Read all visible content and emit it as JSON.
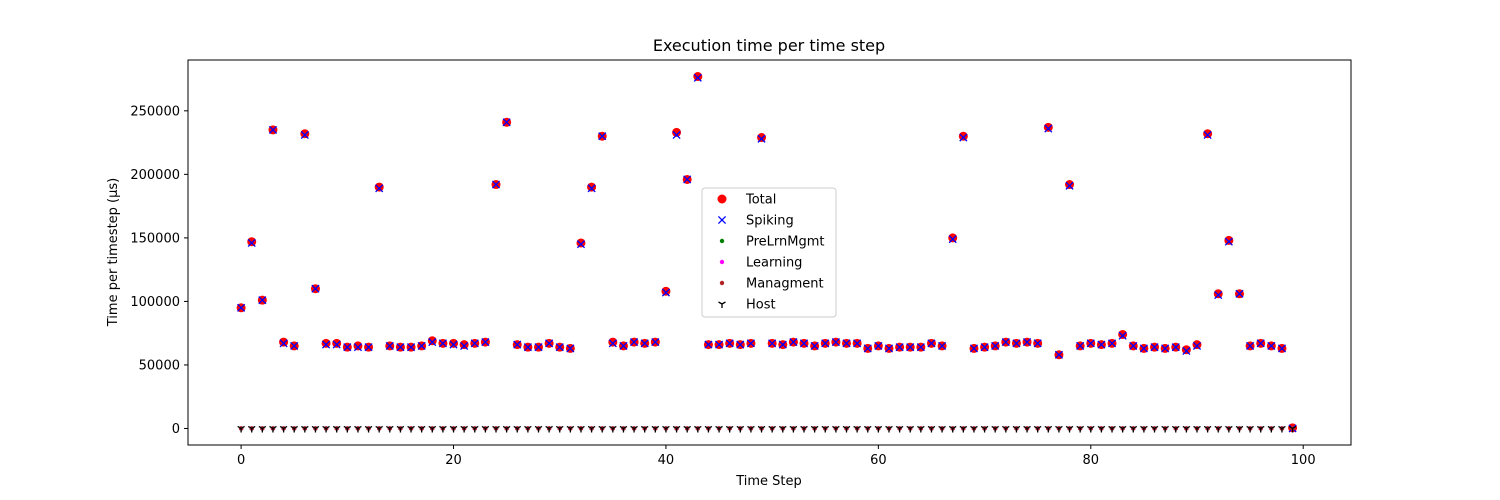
{
  "chart_data": {
    "type": "scatter",
    "title": "Execution time per time step",
    "xlabel": "Time Step",
    "ylabel": "Time per timestep (µs)",
    "xlim": [
      -5,
      104.5
    ],
    "ylim": [
      -13000,
      290000
    ],
    "xticks": [
      0,
      20,
      40,
      60,
      80,
      100
    ],
    "yticks": [
      0,
      50000,
      100000,
      150000,
      200000,
      250000
    ],
    "grid": false,
    "legend_position": "center",
    "x": [
      0,
      1,
      2,
      3,
      4,
      5,
      6,
      7,
      8,
      9,
      10,
      11,
      12,
      13,
      14,
      15,
      16,
      17,
      18,
      19,
      20,
      21,
      22,
      23,
      24,
      25,
      26,
      27,
      28,
      29,
      30,
      31,
      32,
      33,
      34,
      35,
      36,
      37,
      38,
      39,
      40,
      41,
      42,
      43,
      44,
      45,
      46,
      47,
      48,
      49,
      50,
      51,
      52,
      53,
      54,
      55,
      56,
      57,
      58,
      59,
      60,
      61,
      62,
      63,
      64,
      65,
      66,
      67,
      68,
      69,
      70,
      71,
      72,
      73,
      74,
      75,
      76,
      77,
      78,
      79,
      80,
      81,
      82,
      83,
      84,
      85,
      86,
      87,
      88,
      89,
      90,
      91,
      92,
      93,
      94,
      95,
      96,
      97,
      98,
      99
    ],
    "series": [
      {
        "name": "Total",
        "color": "#ff0000",
        "marker": "circle",
        "values": [
          95000,
          147000,
          101000,
          235000,
          68000,
          65000,
          232000,
          110000,
          67000,
          67000,
          64000,
          65000,
          64000,
          190000,
          65000,
          64000,
          64000,
          65000,
          69000,
          67000,
          67000,
          66000,
          67000,
          68000,
          192000,
          241000,
          66000,
          64000,
          64000,
          67000,
          64000,
          63000,
          146000,
          190000,
          230000,
          68000,
          65000,
          68000,
          67000,
          68000,
          108000,
          233000,
          196000,
          277000,
          66000,
          66000,
          67000,
          66000,
          67000,
          229000,
          67000,
          66000,
          68000,
          67000,
          65000,
          67000,
          68000,
          67000,
          67000,
          63000,
          65000,
          63000,
          64000,
          64000,
          64000,
          67000,
          65000,
          150000,
          230000,
          63000,
          64000,
          65000,
          68000,
          67000,
          68000,
          67000,
          237000,
          58000,
          192000,
          65000,
          67000,
          66000,
          67000,
          74000,
          65000,
          63000,
          64000,
          63000,
          64000,
          62000,
          66000,
          232000,
          106000,
          148000,
          106000,
          65000,
          67000,
          65000,
          63000,
          500
        ]
      },
      {
        "name": "Spiking",
        "color": "#0000ff",
        "marker": "x",
        "values": [
          95000,
          146000,
          101000,
          235000,
          67000,
          65000,
          231000,
          110000,
          66000,
          66000,
          64000,
          64000,
          64000,
          189000,
          65000,
          64000,
          64000,
          65000,
          68000,
          67000,
          66000,
          65000,
          67000,
          68000,
          192000,
          241000,
          66000,
          64000,
          64000,
          67000,
          64000,
          63000,
          145000,
          189000,
          230000,
          67000,
          65000,
          68000,
          67000,
          68000,
          107000,
          231000,
          196000,
          276000,
          66000,
          66000,
          67000,
          66000,
          67000,
          228000,
          67000,
          66000,
          68000,
          67000,
          65000,
          67000,
          68000,
          67000,
          67000,
          63000,
          65000,
          63000,
          64000,
          64000,
          64000,
          67000,
          65000,
          149000,
          229000,
          63000,
          64000,
          65000,
          68000,
          67000,
          68000,
          67000,
          236000,
          58000,
          191000,
          65000,
          67000,
          66000,
          67000,
          73000,
          65000,
          63000,
          64000,
          63000,
          64000,
          61000,
          65000,
          231000,
          105000,
          147000,
          106000,
          65000,
          67000,
          65000,
          63000,
          0
        ]
      },
      {
        "name": "PreLrnMgmt",
        "color": "#008000",
        "marker": "dot",
        "values": [
          0,
          0,
          0,
          0,
          0,
          0,
          0,
          0,
          0,
          0,
          0,
          0,
          0,
          0,
          0,
          0,
          0,
          0,
          0,
          0,
          0,
          0,
          0,
          0,
          0,
          0,
          0,
          0,
          0,
          0,
          0,
          0,
          0,
          0,
          0,
          0,
          0,
          0,
          0,
          0,
          0,
          0,
          0,
          0,
          0,
          0,
          0,
          0,
          0,
          0,
          0,
          0,
          0,
          0,
          0,
          0,
          0,
          0,
          0,
          0,
          0,
          0,
          0,
          0,
          0,
          0,
          0,
          0,
          0,
          0,
          0,
          0,
          0,
          0,
          0,
          0,
          0,
          0,
          0,
          0,
          0,
          0,
          0,
          0,
          0,
          0,
          0,
          0,
          0,
          0,
          0,
          0,
          0,
          0,
          0,
          0,
          0,
          0,
          0,
          0
        ]
      },
      {
        "name": "Learning",
        "color": "#ff00ff",
        "marker": "dot",
        "values": [
          0,
          0,
          0,
          0,
          0,
          0,
          0,
          0,
          0,
          0,
          0,
          0,
          0,
          0,
          0,
          0,
          0,
          0,
          0,
          0,
          0,
          0,
          0,
          0,
          0,
          0,
          0,
          0,
          0,
          0,
          0,
          0,
          0,
          0,
          0,
          0,
          0,
          0,
          0,
          0,
          0,
          0,
          0,
          0,
          0,
          0,
          0,
          0,
          0,
          0,
          0,
          0,
          0,
          0,
          0,
          0,
          0,
          0,
          0,
          0,
          0,
          0,
          0,
          0,
          0,
          0,
          0,
          0,
          0,
          0,
          0,
          0,
          0,
          0,
          0,
          0,
          0,
          0,
          0,
          0,
          0,
          0,
          0,
          0,
          0,
          0,
          0,
          0,
          0,
          0,
          0,
          0,
          0,
          0,
          0,
          0,
          0,
          0,
          0,
          0
        ]
      },
      {
        "name": "Managment",
        "color": "#b22222",
        "marker": "dot",
        "values": [
          0,
          0,
          0,
          0,
          0,
          0,
          0,
          0,
          0,
          0,
          0,
          0,
          0,
          0,
          0,
          0,
          0,
          0,
          0,
          0,
          0,
          0,
          0,
          0,
          0,
          0,
          0,
          0,
          0,
          0,
          0,
          0,
          0,
          0,
          0,
          0,
          0,
          0,
          0,
          0,
          0,
          0,
          0,
          0,
          0,
          0,
          0,
          0,
          0,
          0,
          0,
          0,
          0,
          0,
          0,
          0,
          0,
          0,
          0,
          0,
          0,
          0,
          0,
          0,
          0,
          0,
          0,
          0,
          0,
          0,
          0,
          0,
          0,
          0,
          0,
          0,
          0,
          0,
          0,
          0,
          0,
          0,
          0,
          0,
          0,
          0,
          0,
          0,
          0,
          0,
          0,
          0,
          0,
          0,
          0,
          0,
          0,
          0,
          0,
          0
        ]
      },
      {
        "name": "Host",
        "color": "#000000",
        "marker": "tri_down",
        "values": [
          0,
          0,
          0,
          0,
          0,
          0,
          0,
          0,
          0,
          0,
          0,
          0,
          0,
          0,
          0,
          0,
          0,
          0,
          0,
          0,
          0,
          0,
          0,
          0,
          0,
          0,
          0,
          0,
          0,
          0,
          0,
          0,
          0,
          0,
          0,
          0,
          0,
          0,
          0,
          0,
          0,
          0,
          0,
          0,
          0,
          0,
          0,
          0,
          0,
          0,
          0,
          0,
          0,
          0,
          0,
          0,
          0,
          0,
          0,
          0,
          0,
          0,
          0,
          0,
          0,
          0,
          0,
          0,
          0,
          0,
          0,
          0,
          0,
          0,
          0,
          0,
          0,
          0,
          0,
          0,
          0,
          0,
          0,
          0,
          0,
          0,
          0,
          0,
          0,
          0,
          0,
          0,
          0,
          0,
          0,
          0,
          0,
          0,
          0,
          0
        ]
      }
    ]
  }
}
